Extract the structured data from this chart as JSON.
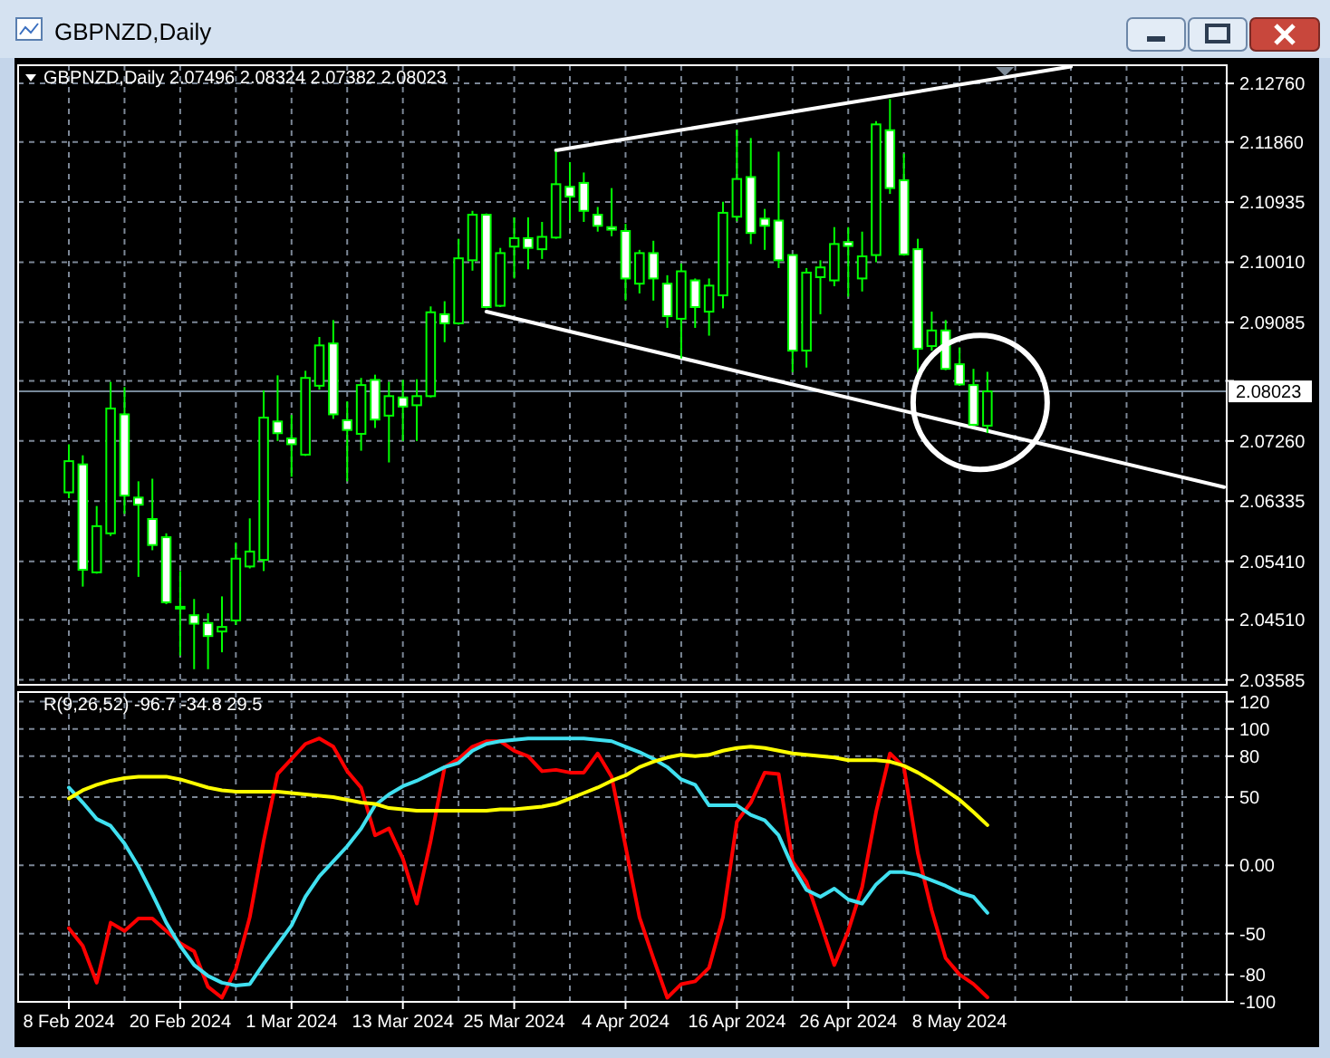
{
  "chart_data": [
    {
      "type": "candlestick",
      "title": "GBPNZD,Daily 2.07496 2.08324 2.07382 2.08023",
      "annotations": [
        "GBPNZD,Daily"
      ],
      "color": "#00ff00",
      "grid": true,
      "tick_labels": "y",
      "categories": [
        null,
        null,
        null,
        null,
        null,
        null,
        null,
        null,
        null,
        null,
        null,
        null,
        null,
        null,
        null,
        null,
        null,
        null,
        null,
        null,
        null,
        null,
        null,
        null,
        null,
        null,
        null,
        null,
        null,
        null,
        null,
        null,
        null,
        null,
        null,
        null,
        null,
        null,
        null,
        null,
        null,
        null,
        null,
        null,
        null,
        null,
        null,
        null,
        null,
        null,
        null,
        null,
        null,
        null,
        null,
        null,
        null,
        null,
        null,
        null,
        null,
        null,
        null,
        null,
        null,
        null,
        null,
        null,
        null,
        null,
        null,
        null,
        null,
        null,
        null,
        null,
        null,
        null,
        null,
        null,
        null,
        null,
        null,
        null
      ],
      "ohlc": [
        [
          2.0647,
          2.0721,
          2.0638,
          2.0695
        ],
        [
          2.069,
          2.0704,
          2.0502,
          2.0528
        ],
        [
          2.0524,
          2.0626,
          2.0522,
          2.0595
        ],
        [
          2.0584,
          2.0817,
          2.058,
          2.0776
        ],
        [
          2.0767,
          2.0809,
          2.0614,
          2.0642
        ],
        [
          2.0639,
          2.0664,
          2.0517,
          2.0628
        ],
        [
          2.0606,
          2.0668,
          2.0558,
          2.0566
        ],
        [
          2.0578,
          2.0584,
          2.0475,
          2.0478
        ],
        [
          2.0471,
          2.0526,
          2.0396,
          2.047
        ],
        [
          2.0458,
          2.0483,
          2.0375,
          2.0445
        ],
        [
          2.0446,
          2.0461,
          2.0375,
          2.0426
        ],
        [
          2.0433,
          2.0487,
          2.0401,
          2.044
        ],
        [
          2.045,
          2.057,
          2.0443,
          2.0545
        ],
        [
          2.0533,
          2.0607,
          2.053,
          2.0556
        ],
        [
          2.0543,
          2.0804,
          2.0526,
          2.0762
        ],
        [
          2.0756,
          2.0827,
          2.0726,
          2.0738
        ],
        [
          2.073,
          2.0766,
          2.0671,
          2.0721
        ],
        [
          2.0705,
          2.0834,
          2.0703,
          2.0823
        ],
        [
          2.0811,
          2.0886,
          2.0805,
          2.0873
        ],
        [
          2.0876,
          2.0912,
          2.076,
          2.0767
        ],
        [
          2.0758,
          2.0787,
          2.0664,
          2.0743
        ],
        [
          2.0737,
          2.0823,
          2.0711,
          2.0812
        ],
        [
          2.082,
          2.0828,
          2.0746,
          2.0759
        ],
        [
          2.0765,
          2.0817,
          2.0693,
          2.0795
        ],
        [
          2.0793,
          2.082,
          2.0726,
          2.0779
        ],
        [
          2.0781,
          2.0821,
          2.0726,
          2.0795
        ],
        [
          2.0795,
          2.0933,
          2.0793,
          2.0924
        ],
        [
          2.0921,
          2.0941,
          2.0878,
          2.0907
        ],
        [
          2.0907,
          2.1037,
          2.0905,
          2.1007
        ],
        [
          2.1004,
          2.108,
          2.0988,
          2.1074
        ],
        [
          2.1074,
          2.1076,
          2.093,
          2.0932
        ],
        [
          2.0934,
          2.1023,
          2.0932,
          2.1015
        ],
        [
          2.1025,
          2.107,
          2.0976,
          2.1038
        ],
        [
          2.1038,
          2.107,
          2.099,
          2.1023
        ],
        [
          2.1021,
          2.1063,
          2.1006,
          2.104
        ],
        [
          2.1039,
          2.1171,
          2.1037,
          2.1121
        ],
        [
          2.1117,
          2.1155,
          2.1066,
          2.1102
        ],
        [
          2.1123,
          2.1139,
          2.1063,
          2.108
        ],
        [
          2.1074,
          2.1086,
          2.1048,
          2.1057
        ],
        [
          2.1055,
          2.1115,
          2.1041,
          2.1051
        ],
        [
          2.1049,
          2.106,
          2.0942,
          2.0976
        ],
        [
          2.0968,
          2.102,
          2.0953,
          2.1015
        ],
        [
          2.1015,
          2.1034,
          2.0942,
          2.0976
        ],
        [
          2.0968,
          2.0981,
          2.09,
          2.0918
        ],
        [
          2.0914,
          2.0999,
          2.0853,
          2.0987
        ],
        [
          2.0973,
          2.0976,
          2.09,
          2.0932
        ],
        [
          2.0925,
          2.0976,
          2.0888,
          2.0965
        ],
        [
          2.095,
          2.1094,
          2.093,
          2.1077
        ],
        [
          2.1071,
          2.1205,
          2.1064,
          2.1129
        ],
        [
          2.1132,
          2.1192,
          2.1029,
          2.1046
        ],
        [
          2.1068,
          2.1083,
          2.102,
          2.1057
        ],
        [
          2.1065,
          2.1171,
          2.0992,
          2.1004
        ],
        [
          2.1012,
          2.1013,
          2.0832,
          2.0865
        ],
        [
          2.0865,
          2.0992,
          2.0839,
          2.0985
        ],
        [
          2.0978,
          2.1004,
          2.0921,
          2.0993
        ],
        [
          2.0973,
          2.1055,
          2.0964,
          2.1029
        ],
        [
          2.1032,
          2.1055,
          2.0948,
          2.1026
        ],
        [
          2.0976,
          2.1048,
          2.0956,
          2.101
        ],
        [
          2.1012,
          2.1218,
          2.1001,
          2.1213
        ],
        [
          2.1204,
          2.1252,
          2.1106,
          2.1115
        ],
        [
          2.1127,
          2.1168,
          2.1011,
          2.1013
        ],
        [
          2.1021,
          2.1037,
          2.0831,
          2.0868
        ],
        [
          2.0872,
          2.0925,
          2.0865,
          2.0896
        ],
        [
          2.0896,
          2.0912,
          2.0835,
          2.0837
        ],
        [
          2.0844,
          2.087,
          2.0811,
          2.0813
        ],
        [
          2.0812,
          2.0837,
          2.0749,
          2.0751
        ],
        [
          2.07496,
          2.08324,
          2.07382,
          2.08023
        ],
        null,
        null,
        null,
        null,
        null,
        null,
        null,
        null,
        null,
        null,
        null,
        null,
        null,
        null,
        null,
        null,
        null
      ],
      "series": [
        {
          "type": "line",
          "color": "#ffffff",
          "values": [
            null,
            null,
            null,
            null,
            null,
            null,
            null,
            null,
            null,
            null,
            null,
            null,
            null,
            null,
            null,
            null,
            null,
            null,
            null,
            null,
            null,
            null,
            null,
            null,
            null,
            null,
            null,
            null,
            null,
            null,
            null,
            null,
            null,
            null,
            null,
            2.1173,
            null,
            null,
            null,
            null,
            null,
            null,
            null,
            null,
            null,
            null,
            null,
            null,
            null,
            null,
            null,
            null,
            null,
            null,
            null,
            null,
            null,
            null,
            null,
            null,
            null,
            null,
            null,
            null,
            null,
            null,
            null,
            null,
            null,
            null,
            null,
            null,
            2.1302,
            null,
            null,
            null,
            null,
            null,
            null,
            null,
            null,
            null,
            null,
            null
          ]
        },
        {
          "type": "line",
          "color": "#ffffff",
          "values": [
            null,
            null,
            null,
            null,
            null,
            null,
            null,
            null,
            null,
            null,
            null,
            null,
            null,
            null,
            null,
            null,
            null,
            null,
            null,
            null,
            null,
            null,
            null,
            null,
            null,
            null,
            null,
            null,
            null,
            null,
            2.0925,
            null,
            null,
            null,
            null,
            null,
            null,
            null,
            null,
            null,
            null,
            null,
            null,
            null,
            null,
            null,
            null,
            null,
            null,
            null,
            null,
            null,
            null,
            null,
            null,
            null,
            null,
            null,
            null,
            null,
            null,
            null,
            null,
            null,
            null,
            null,
            null,
            null,
            null,
            null,
            null,
            null,
            null,
            null,
            null,
            null,
            null,
            null,
            null,
            null,
            null,
            null,
            null,
            2.0655
          ]
        }
      ],
      "ylim": [
        2.0351,
        2.1304
      ],
      "yticks": [
        {
          "value": 2.1276,
          "label": "2.12760"
        },
        {
          "value": 2.1186,
          "label": "2.11860"
        },
        {
          "value": 2.10935,
          "label": "2.10935"
        },
        {
          "value": 2.1001,
          "label": "2.10010"
        },
        {
          "value": 2.09085,
          "label": "2.09085"
        },
        {
          "value": 2.08185,
          "label": null
        },
        {
          "value": 2.0726,
          "label": "2.07260"
        },
        {
          "value": 2.06335,
          "label": "2.06335"
        },
        {
          "value": 2.0541,
          "label": "2.05410"
        },
        {
          "value": 2.0451,
          "label": "2.04510"
        },
        {
          "value": 2.03585,
          "label": "2.03585"
        }
      ],
      "ref_lines": [
        {
          "axis": "y",
          "value": 2.08023,
          "label": "2.08023",
          "color": "#778899"
        }
      ]
    },
    {
      "type": "line",
      "title": "R(9,26,52) -96.7 -34.8 29.5",
      "grid": true,
      "categories": [
        "8 Feb 2024",
        null,
        null,
        null,
        null,
        null,
        null,
        null,
        "20 Feb 2024",
        null,
        null,
        null,
        null,
        null,
        null,
        null,
        "1 Mar 2024",
        null,
        null,
        null,
        null,
        null,
        null,
        null,
        "13 Mar 2024",
        null,
        null,
        null,
        null,
        null,
        null,
        null,
        "25 Mar 2024",
        null,
        null,
        null,
        null,
        null,
        null,
        null,
        "4 Apr 2024",
        null,
        null,
        null,
        null,
        null,
        null,
        null,
        "16 Apr 2024",
        null,
        null,
        null,
        null,
        null,
        null,
        null,
        "26 Apr 2024",
        null,
        null,
        null,
        null,
        null,
        null,
        null,
        "8 May 2024",
        null,
        null,
        null,
        null,
        null,
        null,
        null,
        null,
        null,
        null,
        null,
        null,
        null,
        null,
        null,
        null,
        null,
        null,
        null
      ],
      "series": [
        {
          "color": "#ff0000",
          "values": [
            -46,
            -59,
            -86,
            -42,
            -48,
            -39,
            -39,
            -48,
            -57,
            -63,
            -89,
            -97,
            -76,
            -38,
            18,
            67,
            78,
            89,
            93,
            87,
            69,
            57,
            22,
            27,
            5,
            -28,
            18,
            72,
            78,
            87,
            91,
            91,
            84,
            80,
            69,
            70,
            68,
            68,
            82,
            65,
            14,
            -38,
            -68,
            -97,
            -87,
            -85,
            -75,
            -38,
            32,
            46,
            68,
            67,
            3,
            -12,
            -42,
            -73,
            -48,
            -16,
            39,
            82,
            72,
            9,
            -33,
            -68,
            -80,
            -87,
            -96.7,
            null,
            null,
            null,
            null,
            null,
            null,
            null,
            null,
            null,
            null,
            null,
            null,
            null,
            null,
            null,
            null,
            null
          ]
        },
        {
          "color": "#40e0f0",
          "values": [
            57,
            46,
            34,
            29,
            16,
            -1,
            -21,
            -42,
            -59,
            -73,
            -81,
            -86,
            -88,
            -87,
            -72,
            -58,
            -44,
            -23,
            -8,
            3,
            14,
            27,
            44,
            52,
            58,
            62,
            67,
            72,
            75,
            84,
            89,
            91,
            92,
            93,
            93,
            93,
            93,
            93,
            92,
            91,
            87,
            83,
            78,
            72,
            63,
            59,
            44,
            44,
            44,
            37,
            33,
            22,
            -1,
            -18,
            -23,
            -17,
            -25,
            -28,
            -14,
            -5,
            -5,
            -7,
            -11,
            -15,
            -20,
            -23,
            -34.8,
            null,
            null,
            null,
            null,
            null,
            null,
            null,
            null,
            null,
            null,
            null,
            null,
            null,
            null,
            null,
            null,
            null
          ]
        },
        {
          "color": "#ffff00",
          "values": [
            49,
            55,
            59,
            62,
            64,
            65,
            65,
            65,
            63,
            60,
            57,
            55,
            54,
            54,
            54,
            54,
            53,
            52,
            51,
            50,
            48,
            46,
            45,
            42,
            41,
            40,
            40,
            40,
            40,
            40,
            40,
            41,
            41,
            42,
            43,
            45,
            49,
            53,
            57,
            62,
            66,
            72,
            76,
            79,
            81,
            80,
            81,
            84,
            86,
            87,
            86,
            84,
            82,
            81,
            80,
            79,
            77,
            77,
            77,
            76,
            73,
            68,
            62,
            55,
            48,
            39,
            29.5,
            null,
            null,
            null,
            null,
            null,
            null,
            null,
            null,
            null,
            null,
            null,
            null,
            null,
            null,
            null,
            null,
            null
          ]
        }
      ],
      "ylim": [
        -100,
        127
      ],
      "yticks": [
        120,
        100,
        80,
        50,
        {
          "value": 0,
          "label": "0.00"
        },
        -50,
        -80,
        -100
      ]
    }
  ]
}
